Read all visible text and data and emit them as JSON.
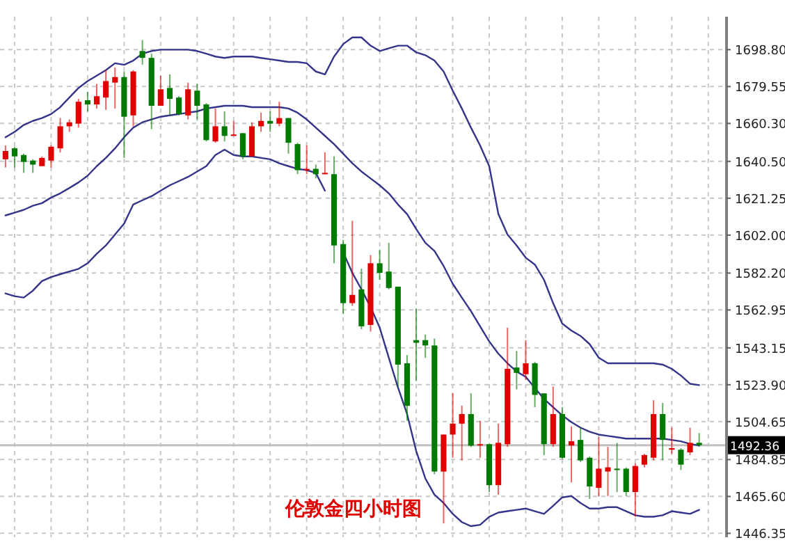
{
  "chart_data": {
    "type": "candlestick",
    "title": "伦敦金四小时图",
    "categories": [
      null,
      null,
      null,
      null,
      null,
      null,
      null,
      null,
      null,
      null,
      null,
      null,
      null,
      null,
      null,
      null,
      null,
      null,
      null,
      null,
      null,
      null,
      null,
      null,
      null,
      null,
      null,
      null,
      null,
      null,
      null,
      null,
      null,
      null,
      null,
      null,
      null,
      null,
      null,
      null,
      null,
      null,
      null,
      null,
      null,
      null,
      null,
      null,
      null,
      null,
      null,
      null,
      null,
      null,
      null,
      null,
      null,
      null,
      null,
      null,
      null,
      null,
      null,
      null,
      null,
      null,
      null,
      null,
      null,
      null,
      null,
      null,
      null,
      null,
      null,
      null,
      null
    ],
    "ohlc": [
      [
        1641.6,
        1648.8,
        1637.3,
        1645.9
      ],
      [
        1647.3,
        1648.1,
        1637.3,
        1643.1
      ],
      [
        1643.8,
        1644.5,
        1634.5,
        1640.2
      ],
      [
        1640.9,
        1641.6,
        1634.5,
        1638.8
      ],
      [
        1638.0,
        1643.1,
        1638.0,
        1642.3
      ],
      [
        1640.9,
        1648.8,
        1637.3,
        1648.1
      ],
      [
        1647.3,
        1663.1,
        1645.2,
        1658.8
      ],
      [
        1658.8,
        1662.4,
        1655.9,
        1660.9
      ],
      [
        1660.2,
        1673.1,
        1658.1,
        1671.6
      ],
      [
        1672.4,
        1676.7,
        1666.6,
        1670.2
      ],
      [
        1670.2,
        1680.9,
        1668.1,
        1674.5
      ],
      [
        1673.8,
        1688.1,
        1667.4,
        1682.4
      ],
      [
        1681.6,
        1689.5,
        1668.1,
        1684.5
      ],
      [
        1684.5,
        1687.4,
        1642.3,
        1663.8
      ],
      [
        1664.5,
        1688.1,
        1658.8,
        1687.4
      ],
      [
        1698.1,
        1703.8,
        1690.9,
        1694.5
      ],
      [
        1694.5,
        1696.7,
        1657.3,
        1669.5
      ],
      [
        1669.5,
        1685.2,
        1669.5,
        1678.1
      ],
      [
        1678.8,
        1685.9,
        1664.5,
        1673.1
      ],
      [
        1673.8,
        1674.5,
        1664.5,
        1665.2
      ],
      [
        1664.5,
        1681.6,
        1662.4,
        1678.1
      ],
      [
        1677.4,
        1680.9,
        1662.4,
        1669.5
      ],
      [
        1670.2,
        1670.9,
        1650.9,
        1651.6
      ],
      [
        1650.9,
        1668.1,
        1650.2,
        1658.8
      ],
      [
        1658.8,
        1666.6,
        1650.9,
        1653.8
      ],
      [
        1653.8,
        1661.6,
        1653.8,
        1654.5
      ],
      [
        1655.2,
        1655.2,
        1641.6,
        1643.1
      ],
      [
        1643.1,
        1660.9,
        1643.1,
        1658.8
      ],
      [
        1658.8,
        1665.9,
        1655.9,
        1661.6
      ],
      [
        1661.6,
        1666.6,
        1655.9,
        1660.2
      ],
      [
        1660.2,
        1671.6,
        1658.8,
        1663.1
      ],
      [
        1663.1,
        1663.1,
        1644.5,
        1650.2
      ],
      [
        1649.5,
        1650.2,
        1633.8,
        1635.9
      ],
      [
        1635.9,
        1648.8,
        1633.8,
        1636.6
      ],
      [
        1636.6,
        1638.8,
        1631.6,
        1633.8
      ],
      [
        1633.8,
        1645.2,
        1633.8,
        1634.5
      ],
      [
        1633.8,
        1643.1,
        1587.3,
        1596.6
      ],
      [
        1597.3,
        1599.5,
        1560.8,
        1566.5
      ],
      [
        1566.5,
        1609.5,
        1565.1,
        1570.8
      ],
      [
        1573.7,
        1584.5,
        1552.9,
        1554.4
      ],
      [
        1555.1,
        1591.6,
        1551.6,
        1587.3
      ],
      [
        1587.3,
        1594.4,
        1578.7,
        1582.3
      ],
      [
        1583.0,
        1598.0,
        1573.7,
        1574.4
      ],
      [
        1575.1,
        1575.1,
        1522.9,
        1534.4
      ],
      [
        1535.1,
        1539.4,
        1505.1,
        1512.9
      ],
      [
        1547.2,
        1563.7,
        1525.8,
        1545.8
      ],
      [
        1547.2,
        1550.1,
        1537.9,
        1544.4
      ],
      [
        1544.4,
        1548.0,
        1477.2,
        1478.6
      ],
      [
        1478.6,
        1497.9,
        1451.5,
        1497.9
      ],
      [
        1497.9,
        1519.4,
        1485.8,
        1503.6
      ],
      [
        1503.6,
        1513.0,
        1484.4,
        1508.6
      ],
      [
        1508.6,
        1519.4,
        1491.4,
        1492.1
      ],
      [
        1492.2,
        1505.1,
        1485.8,
        1492.9
      ],
      [
        1492.9,
        1492.9,
        1467.9,
        1471.5
      ],
      [
        1471.5,
        1503.6,
        1466.5,
        1493.6
      ],
      [
        1492.9,
        1553.7,
        1491.5,
        1532.2
      ],
      [
        1532.9,
        1541.5,
        1521.5,
        1530.1
      ],
      [
        1529.4,
        1547.2,
        1526.5,
        1535.1
      ],
      [
        1535.1,
        1535.8,
        1512.2,
        1518.6
      ],
      [
        1519.4,
        1519.4,
        1487.2,
        1492.9
      ],
      [
        1492.9,
        1523.0,
        1491.5,
        1508.6
      ],
      [
        1508.6,
        1512.2,
        1485.1,
        1485.8
      ],
      [
        1492.2,
        1502.2,
        1472.9,
        1494.4
      ],
      [
        1495.1,
        1501.5,
        1483.6,
        1484.4
      ],
      [
        1485.8,
        1486.5,
        1464.3,
        1470.8
      ],
      [
        1470.1,
        1496.5,
        1465.8,
        1480.1
      ],
      [
        1478.6,
        1491.5,
        1465.8,
        1480.8
      ],
      [
        1480.1,
        1493.6,
        1467.9,
        1479.9
      ],
      [
        1480.1,
        1480.8,
        1465.8,
        1467.9
      ],
      [
        1467.9,
        1482.9,
        1455.0,
        1481.5
      ],
      [
        1482.2,
        1487.9,
        1480.8,
        1487.2
      ],
      [
        1485.8,
        1515.8,
        1484.4,
        1508.6
      ],
      [
        1508.6,
        1514.4,
        1484.4,
        1495.1
      ],
      [
        1490.0,
        1501.5,
        1487.9,
        1490.8
      ],
      [
        1490.0,
        1490.8,
        1479.4,
        1482.2
      ],
      [
        1488.6,
        1501.5,
        1487.2,
        1493.6
      ],
      [
        1493.6,
        1498.7,
        1491.5,
        1492.36
      ]
    ],
    "colors": [
      "#e00000",
      "#007a00",
      "#007a00",
      "#007a00",
      "#e00000",
      "#e00000",
      "#e00000",
      "#e00000",
      "#e00000",
      "#007a00",
      "#e00000",
      "#e00000",
      "#e00000",
      "#007a00",
      "#e00000",
      "#007a00",
      "#007a00",
      "#e00000",
      "#007a00",
      "#007a00",
      "#e00000",
      "#007a00",
      "#007a00",
      "#e00000",
      "#007a00",
      "#e00000",
      "#007a00",
      "#e00000",
      "#e00000",
      "#007a00",
      "#e00000",
      "#007a00",
      "#007a00",
      "#e00000",
      "#007a00",
      "#e00000",
      "#007a00",
      "#007a00",
      "#e00000",
      "#007a00",
      "#e00000",
      "#007a00",
      "#007a00",
      "#007a00",
      "#007a00",
      "#007a00",
      "#007a00",
      "#007a00",
      "#e00000",
      "#e00000",
      "#e00000",
      "#007a00",
      "#e00000",
      "#007a00",
      "#e00000",
      "#e00000",
      "#007a00",
      "#e00000",
      "#007a00",
      "#007a00",
      "#e00000",
      "#007a00",
      "#e00000",
      "#007a00",
      "#007a00",
      "#e00000",
      "#e00000",
      "#007a00",
      "#007a00",
      "#e00000",
      "#e00000",
      "#e00000",
      "#007a00",
      "#e00000",
      "#007a00",
      "#e00000",
      "#007a00"
    ],
    "series": [
      {
        "type": "line",
        "color": "#34348a",
        "values": [
          1653.1,
          1655.9,
          1659.5,
          1661.6,
          1663.1,
          1665.2,
          1668.8,
          1673.8,
          1678.8,
          1682.4,
          1685.2,
          1688.1,
          1691.7,
          1690.9,
          1693.1,
          1696.7,
          1698.1,
          1698.8,
          1698.8,
          1698.8,
          1698.8,
          1698.1,
          1696.7,
          1695.2,
          1694.5,
          1695.2,
          1695.2,
          1695.2,
          1694.5,
          1693.8,
          1693.1,
          1692.4,
          1692.4,
          1691.7,
          1687.4,
          1685.9,
          1695.2,
          1701.7,
          1705.2,
          1705.2,
          1700.9,
          1698.1,
          1699.5,
          1700.9,
          1700.9,
          1697.4,
          1695.9,
          1693.1,
          1687.4,
          1677.4,
          1668.1,
          1658.1,
          1648.8,
          1638.0,
          1613.0,
          1602.3,
          1596.6,
          1590.2,
          1586.6,
          1578.7,
          1566.5,
          1555.8,
          1552.2,
          1549.4,
          1545.1,
          1538.0,
          1535.1,
          1535.1,
          1535.1,
          1535.1,
          1535.1,
          1535.1,
          1534.4,
          1532.2,
          1528.7,
          1524.4,
          1523.7
        ]
      },
      {
        "type": "line",
        "color": "#34348a",
        "values": [
          1612.3,
          1613.7,
          1615.2,
          1617.3,
          1618.7,
          1621.6,
          1623.8,
          1626.6,
          1629.5,
          1633.0,
          1638.0,
          1642.3,
          1647.3,
          1653.1,
          1658.1,
          1660.9,
          1662.4,
          1663.8,
          1664.5,
          1665.2,
          1665.9,
          1666.6,
          1668.1,
          1668.8,
          1669.5,
          1669.5,
          1669.5,
          1668.8,
          1668.8,
          1668.8,
          1668.8,
          1668.1,
          1665.9,
          1662.4,
          1658.1,
          1653.8,
          1649.5,
          1644.5,
          1639.5,
          1635.2,
          1631.6,
          1628.0,
          1623.8,
          1618.0,
          1613.0,
          1605.2,
          1598.0,
          1593.7,
          1585.9,
          1576.6,
          1569.4,
          1562.3,
          1554.4,
          1546.5,
          1540.1,
          1535.1,
          1530.8,
          1528.0,
          1522.2,
          1516.5,
          1512.2,
          1507.9,
          1504.4,
          1501.5,
          1499.4,
          1497.9,
          1497.2,
          1496.5,
          1495.8,
          1495.8,
          1495.8,
          1495.8,
          1495.8,
          1495.1,
          1494.4,
          1493.0,
          1492.2
        ]
      },
      {
        "type": "line",
        "color": "#34348a",
        "values": [
          1571.6,
          1570.1,
          1569.4,
          1573.0,
          1578.0,
          1580.1,
          1581.6,
          1583.0,
          1584.4,
          1587.3,
          1592.3,
          1596.6,
          1602.3,
          1608.0,
          1618.0,
          1620.2,
          1622.3,
          1625.2,
          1628.0,
          1630.2,
          1632.4,
          1635.2,
          1638.0,
          1643.8,
          1646.6,
          1643.8,
          1643.1,
          1643.1,
          1642.3,
          1641.6,
          1639.5,
          1638.0,
          1636.6,
          1635.9,
          1634.5,
          1625.2,
          null,
          1593.0,
          1582.3,
          1573.7,
          1564.4,
          1553.7,
          1538.0,
          1522.5,
          1508.6,
          1489.3,
          1475.0,
          1466.5,
          1462.2,
          1456.5,
          1452.2,
          1450.1,
          1450.8,
          1455.0,
          1457.2,
          1457.9,
          1458.6,
          1459.3,
          1457.9,
          1456.5,
          1460.7,
          1465.1,
          1465.8,
          1462.2,
          1459.3,
          1459.3,
          1460.0,
          1460.0,
          1457.9,
          1455.8,
          1455.0,
          1455.0,
          1455.8,
          1457.9,
          1457.2,
          1456.5,
          1458.6
        ]
      }
    ],
    "ylim": [
      1444.3,
      1716
    ],
    "yticks": [
      {
        "value": 1698.8,
        "label": "1698.80"
      },
      1679.55,
      {
        "value": 1660.3,
        "label": "1660.30"
      },
      {
        "value": 1640.5,
        "label": "1640.50"
      },
      1621.25,
      {
        "value": 1602.0,
        "label": "1602.00"
      },
      {
        "value": 1582.2,
        "label": "1582.20"
      },
      1562.95,
      1543.15,
      {
        "value": 1523.9,
        "label": "1523.90"
      },
      1504.65,
      1484.85,
      {
        "value": 1465.6,
        "label": "1465.60"
      },
      1446.35
    ],
    "ref_lines": [
      {
        "axis": "y",
        "value": 1492.36,
        "label": "1492.36",
        "color": "#c0c0c0"
      }
    ],
    "grid": true,
    "tick_labels": "y",
    "line_style": "solid",
    "marker": "none"
  }
}
